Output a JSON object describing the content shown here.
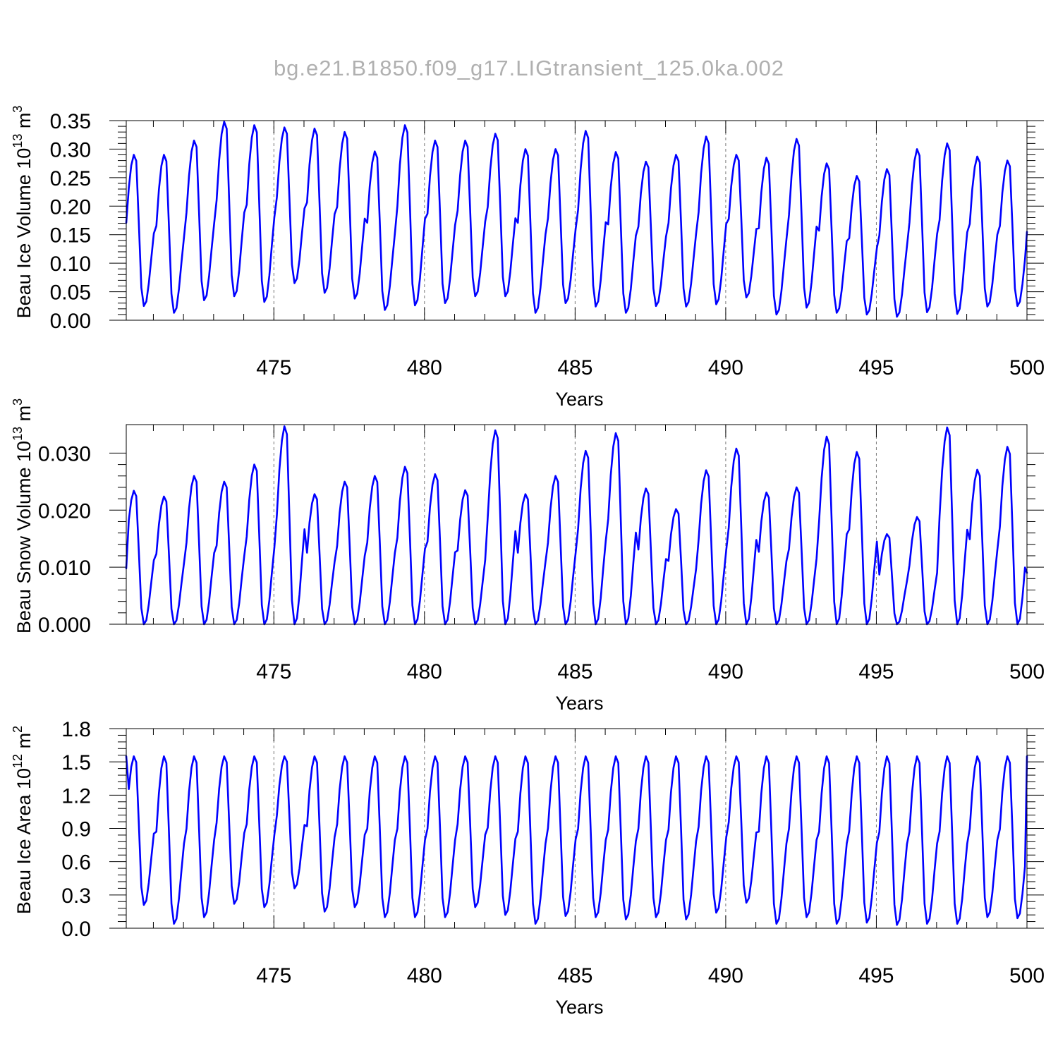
{
  "figure": {
    "title": "bg.e21.B1850.f09_g17.LIGtransient_125.0ka.002"
  },
  "chart_data": [
    {
      "type": "line",
      "ylabel": "Beau Ice Volume 10",
      "ylabel_exp": "13",
      "ylabel_unit": " m",
      "ylabel_unit_exp": "3",
      "xlabel": "Years",
      "xlim": [
        470.1,
        500.0
      ],
      "ylim": [
        0.0,
        0.35
      ],
      "xticks": [
        475,
        480,
        485,
        490,
        495,
        500
      ],
      "xtick_labels": [
        "475",
        "480",
        "485",
        "490",
        "495",
        "500"
      ],
      "yticks": [
        0.0,
        0.05,
        0.1,
        0.15,
        0.2,
        0.25,
        0.3,
        0.35
      ],
      "ytick_labels": [
        "0.00",
        "0.05",
        "0.10",
        "0.15",
        "0.20",
        "0.25",
        "0.30",
        "0.35"
      ],
      "grid": "vertical dashed at major x ticks",
      "series": [
        {
          "color": "#0000ff",
          "x_start": 470.1,
          "x_step": 0.0833333,
          "maxima": [
            0.29,
            0.29,
            0.315,
            0.348,
            0.342,
            0.338,
            0.336,
            0.33,
            0.296,
            0.342,
            0.315,
            0.315,
            0.327,
            0.3,
            0.3,
            0.332,
            0.295,
            0.278,
            0.29,
            0.322,
            0.29,
            0.285,
            0.318,
            0.275,
            0.253,
            0.265,
            0.3,
            0.31,
            0.287,
            0.28
          ],
          "minima": [
            0.025,
            0.013,
            0.035,
            0.042,
            0.032,
            0.065,
            0.048,
            0.038,
            0.018,
            0.026,
            0.03,
            0.042,
            0.042,
            0.013,
            0.03,
            0.024,
            0.013,
            0.025,
            0.024,
            0.028,
            0.04,
            0.01,
            0.022,
            0.013,
            0.01,
            0.006,
            0.014,
            0.011,
            0.024,
            0.025
          ],
          "end_value": 0.155
        }
      ]
    },
    {
      "type": "line",
      "ylabel": "Beau Snow Volume 10",
      "ylabel_exp": "13",
      "ylabel_unit": " m",
      "ylabel_unit_exp": "3",
      "xlabel": "Years",
      "xlim": [
        470.1,
        500.0
      ],
      "ylim": [
        0.0,
        0.035
      ],
      "xticks": [
        475,
        480,
        485,
        490,
        495,
        500
      ],
      "xtick_labels": [
        "475",
        "480",
        "485",
        "490",
        "495",
        "500"
      ],
      "yticks": [
        0.0,
        0.01,
        0.02,
        0.03
      ],
      "ytick_labels": [
        "0.000",
        "0.010",
        "0.020",
        "0.030"
      ],
      "grid": "vertical dashed at major x ticks",
      "series": [
        {
          "color": "#0000ff",
          "x_start": 470.1,
          "x_step": 0.0833333,
          "maxima": [
            0.0234,
            0.0224,
            0.026,
            0.025,
            0.028,
            0.0347,
            0.0228,
            0.025,
            0.026,
            0.0276,
            0.0263,
            0.0235,
            0.034,
            0.0228,
            0.026,
            0.0304,
            0.0335,
            0.0238,
            0.0202,
            0.027,
            0.0308,
            0.0231,
            0.024,
            0.0329,
            0.0302,
            0.0158,
            0.0188,
            0.0345,
            0.0271,
            0.0311
          ],
          "minima": [
            0.0,
            0.0,
            0.0,
            0.0,
            0.0,
            0.0,
            0.0,
            0.0,
            0.0,
            0.0,
            0.0,
            0.0,
            0.0,
            0.0,
            0.0,
            0.0,
            0.0,
            0.0,
            0.0,
            0.0,
            0.0,
            0.0,
            0.0,
            0.0,
            0.0,
            0.0,
            0.0,
            0.0,
            0.0,
            0.0
          ],
          "start_value": 0.0098,
          "end_value": 0.009
        }
      ]
    },
    {
      "type": "line",
      "ylabel": "Beau Ice Area 10",
      "ylabel_exp": "12",
      "ylabel_unit": " m",
      "ylabel_unit_exp": "2",
      "xlabel": "Years",
      "xlim": [
        470.1,
        500.0
      ],
      "ylim": [
        0.0,
        1.8
      ],
      "xticks": [
        475,
        480,
        485,
        490,
        495,
        500
      ],
      "xtick_labels": [
        "475",
        "480",
        "485",
        "490",
        "495",
        "500"
      ],
      "yticks": [
        0.0,
        0.3,
        0.6,
        0.9,
        1.2,
        1.5,
        1.8
      ],
      "ytick_labels": [
        "0.0",
        "0.3",
        "0.6",
        "0.9",
        "1.2",
        "1.5",
        "1.8"
      ],
      "grid": "vertical dashed at major x ticks",
      "series": [
        {
          "color": "#0000ff",
          "x_start": 470.1,
          "x_step": 0.0833333,
          "maxima": [
            1.55,
            1.55,
            1.55,
            1.55,
            1.55,
            1.55,
            1.55,
            1.55,
            1.55,
            1.55,
            1.55,
            1.55,
            1.55,
            1.55,
            1.55,
            1.55,
            1.55,
            1.55,
            1.55,
            1.55,
            1.55,
            1.55,
            1.55,
            1.55,
            1.55,
            1.55,
            1.55,
            1.55,
            1.55,
            1.55
          ],
          "minima": [
            0.21,
            0.04,
            0.1,
            0.22,
            0.19,
            0.36,
            0.15,
            0.19,
            0.1,
            0.1,
            0.1,
            0.19,
            0.12,
            0.04,
            0.11,
            0.1,
            0.08,
            0.1,
            0.08,
            0.14,
            0.23,
            0.04,
            0.1,
            0.04,
            0.05,
            0.03,
            0.04,
            0.04,
            0.1,
            0.09
          ],
          "start_value": 1.55,
          "end_value": 1.55
        }
      ]
    }
  ]
}
